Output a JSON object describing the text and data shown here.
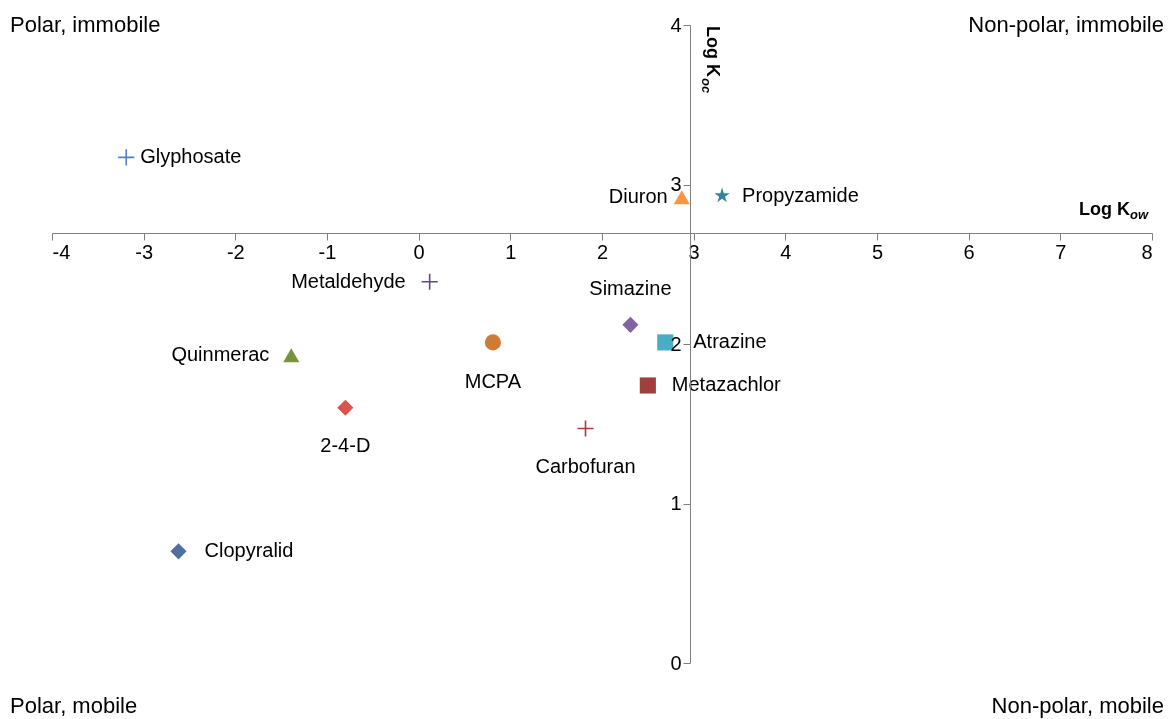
{
  "chart_data": {
    "type": "scatter",
    "xlabel": "Log K$_{ow}$",
    "ylabel": "Log K$_{oc}$",
    "xlim": [
      -4,
      8
    ],
    "xticks": [
      -4,
      -3,
      -2,
      -1,
      0,
      1,
      2,
      3,
      4,
      5,
      6,
      7,
      8
    ],
    "ylim": [
      0,
      4
    ],
    "yticks": [
      0,
      1,
      2,
      3,
      4
    ],
    "grid": false,
    "annotations": [
      "Polar,  immobile",
      "Non-polar, immobile",
      "Polar, mobile",
      "Non-polar, mobile"
    ],
    "series": [
      {
        "name": "Glyphosate",
        "color": "#4f81bd",
        "marker": "cross",
        "x": [
          -3.19
        ],
        "values": [
          3.17
        ]
      },
      {
        "name": "Diuron",
        "color": "#f79646",
        "marker": "triangle",
        "x": [
          2.87
        ],
        "values": [
          2.92
        ]
      },
      {
        "name": "Propyzamide",
        "color": "#31859c",
        "marker": "star",
        "x": [
          3.31
        ],
        "values": [
          2.93
        ]
      },
      {
        "name": "Metaldehyde",
        "color": "#604a7b",
        "marker": "cross",
        "x": [
          0.12
        ],
        "values": [
          2.39
        ]
      },
      {
        "name": "Simazine",
        "color": "#8064a2",
        "marker": "diamond",
        "x": [
          2.31
        ],
        "values": [
          2.12
        ]
      },
      {
        "name": "Atrazine",
        "color": "#4bacc6",
        "marker": "square",
        "x": [
          2.69
        ],
        "values": [
          2.01
        ]
      },
      {
        "name": "MCPA",
        "color": "#d07a34",
        "marker": "circle",
        "x": [
          0.81
        ],
        "values": [
          2.01
        ]
      },
      {
        "name": "Quinmerac",
        "color": "#77933c",
        "marker": "triangle",
        "x": [
          -1.39
        ],
        "values": [
          1.93
        ]
      },
      {
        "name": "Metazachlor",
        "color": "#a0403e",
        "marker": "square",
        "x": [
          2.5
        ],
        "values": [
          1.74
        ]
      },
      {
        "name": "2-4-D",
        "color": "#d9534f",
        "marker": "diamond",
        "x": [
          -0.8
        ],
        "values": [
          1.6
        ]
      },
      {
        "name": "Carbofuran",
        "color": "#a0403e",
        "marker": "cross",
        "x": [
          1.82
        ],
        "values": [
          1.47
        ]
      },
      {
        "name": "Clopyralid",
        "color": "#4f6fa0",
        "marker": "diamond",
        "x": [
          -2.62
        ],
        "values": [
          0.7
        ]
      }
    ]
  }
}
